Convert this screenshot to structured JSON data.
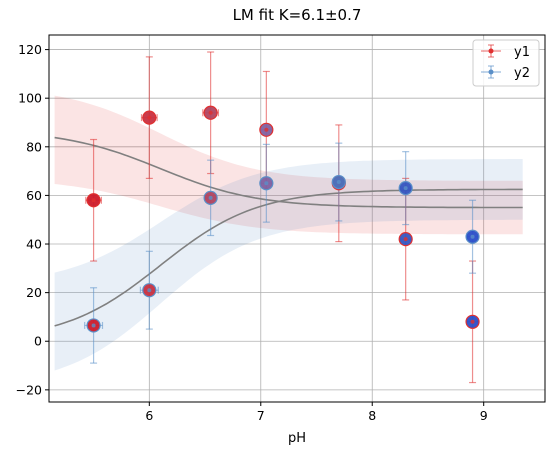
{
  "chart_data": {
    "type": "scatter",
    "title": "LM fit K=6.1±0.7",
    "xlabel": "pH",
    "ylabel": "",
    "xlim": [
      5.1,
      9.55
    ],
    "ylim": [
      -25,
      126
    ],
    "xticks": [
      6,
      7,
      8,
      9
    ],
    "yticks": [
      -20,
      0,
      20,
      40,
      60,
      80,
      100,
      120
    ],
    "grid": true,
    "legend_position": "top-right",
    "series": [
      {
        "name": "y1",
        "color": "#e03030",
        "x": [
          5.5,
          6.0,
          6.55,
          7.05,
          7.7,
          8.3,
          8.9
        ],
        "x_err": [
          0.07,
          0.07,
          0.07,
          0.05,
          0.05,
          0.05,
          0.05
        ],
        "y": [
          58,
          92,
          94,
          87,
          65,
          42,
          8
        ],
        "y_err": [
          25,
          25,
          25,
          24,
          24,
          25,
          25
        ],
        "fit_band": {
          "upper_start": 105,
          "upper_end": 66,
          "lower_start": 67,
          "lower_end": 44
        }
      },
      {
        "name": "y2",
        "color": "#5a8fc8",
        "x": [
          5.5,
          6.0,
          6.55,
          7.05,
          7.7,
          8.3,
          8.9
        ],
        "x_err": [
          0.08,
          0.08,
          0.05,
          0.05,
          0.05,
          0.05,
          0.05
        ],
        "y": [
          6.5,
          21,
          59,
          65,
          65.5,
          63,
          43
        ],
        "y_err": [
          15.5,
          16,
          15.5,
          16,
          16,
          15,
          15
        ],
        "fit_band": {
          "upper_start": 23,
          "upper_end": 75,
          "lower_start": -19,
          "lower_end": 50
        }
      }
    ],
    "fit_curves": {
      "color": "#808080",
      "pKa": 6.1,
      "x_range": [
        5.15,
        9.35
      ],
      "curve_1": {
        "low_pH_plateau": 87,
        "high_pH_plateau": 55
      },
      "curve_2": {
        "low_pH_plateau": 0,
        "high_pH_plateau": 62.5
      }
    },
    "markers": {
      "center_palette": [
        "#cc1a2a",
        "#c83040",
        "#b04560",
        "#8060a0",
        "#5070b8",
        "#3555c0",
        "#2a4ec8"
      ],
      "outline_color_y1": "#e03030",
      "outline_color_y2": "#5a8fc8"
    }
  }
}
